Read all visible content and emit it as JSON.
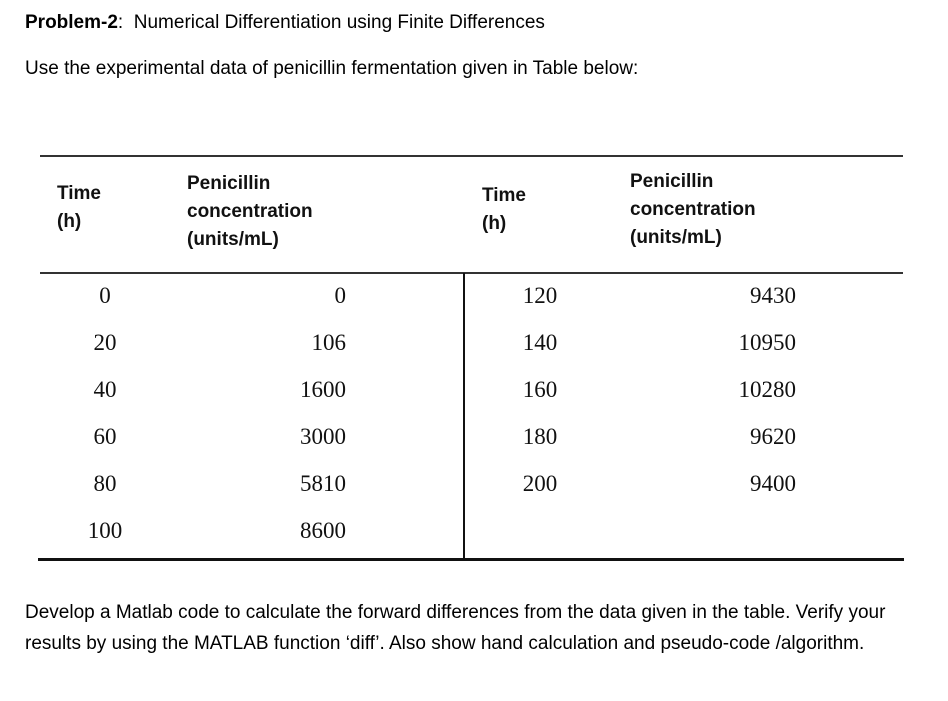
{
  "heading": {
    "label": "Problem-2",
    "separator": ":",
    "title": "Numerical Differentiation using Finite Differences"
  },
  "intro": "Use the experimental data of penicillin fermentation given in Table below:",
  "table": {
    "headers": {
      "time": [
        "Time",
        "(h)"
      ],
      "concentration": [
        "Penicillin",
        "concentration",
        "(units/mL)"
      ]
    },
    "left": {
      "time": [
        "0",
        "20",
        "40",
        "60",
        "80",
        "100"
      ],
      "concentration": [
        "0",
        "106",
        "1600",
        "3000",
        "5810",
        "8600"
      ]
    },
    "right": {
      "time": [
        "120",
        "140",
        "160",
        "180",
        "200"
      ],
      "concentration": [
        "9430",
        "10950",
        "10280",
        "9620",
        "9400"
      ]
    }
  },
  "task": "Develop a Matlab code to calculate the forward differences from the data given in the table. Verify your results by using the MATLAB function ‘diff’. Also show hand calculation and pseudo-code /algorithm."
}
